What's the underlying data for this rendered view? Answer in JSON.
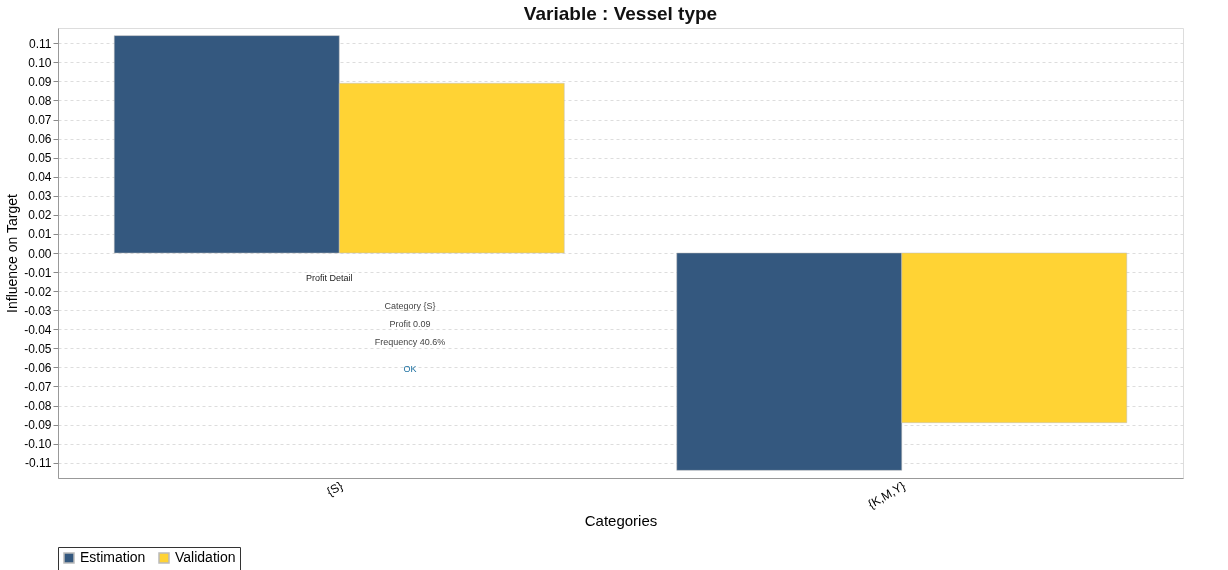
{
  "chart_data": {
    "type": "bar",
    "title": "Variable : Vessel type",
    "xlabel": "Categories",
    "ylabel": "Influence on Target",
    "categories": [
      "{S}",
      "{K,M,Y}"
    ],
    "series": [
      {
        "name": "Estimation",
        "color": "#34587f",
        "values": [
          0.114,
          -0.114
        ]
      },
      {
        "name": "Validation",
        "color": "#ffd334",
        "values": [
          0.089,
          -0.089
        ]
      }
    ],
    "ylim": [
      -0.118,
      0.118
    ],
    "yticks": [
      {
        "value": -0.11,
        "label": "-0.11"
      },
      {
        "value": -0.1,
        "label": "-0.10"
      },
      {
        "value": -0.09,
        "label": "-0.09"
      },
      {
        "value": -0.08,
        "label": "-0.08"
      },
      {
        "value": -0.07,
        "label": "-0.07"
      },
      {
        "value": -0.06,
        "label": "-0.06"
      },
      {
        "value": -0.05,
        "label": "-0.05"
      },
      {
        "value": -0.04,
        "label": "-0.04"
      },
      {
        "value": -0.03,
        "label": "-0.03"
      },
      {
        "value": -0.02,
        "label": "-0.02"
      },
      {
        "value": -0.01,
        "label": "-0.01"
      },
      {
        "value": 0,
        "label": "0.00"
      },
      0.01,
      0.02,
      0.03,
      0.04,
      0.05,
      0.06,
      0.07,
      0.08,
      0.09,
      {
        "value": 0.1,
        "label": "0.10"
      },
      0.11
    ],
    "grid": "y",
    "legend": "bottom",
    "annotations": [
      "Profit Detail",
      "Category  {S}",
      "Profit  0.09",
      "Frequency  40.6%",
      "OK"
    ]
  }
}
